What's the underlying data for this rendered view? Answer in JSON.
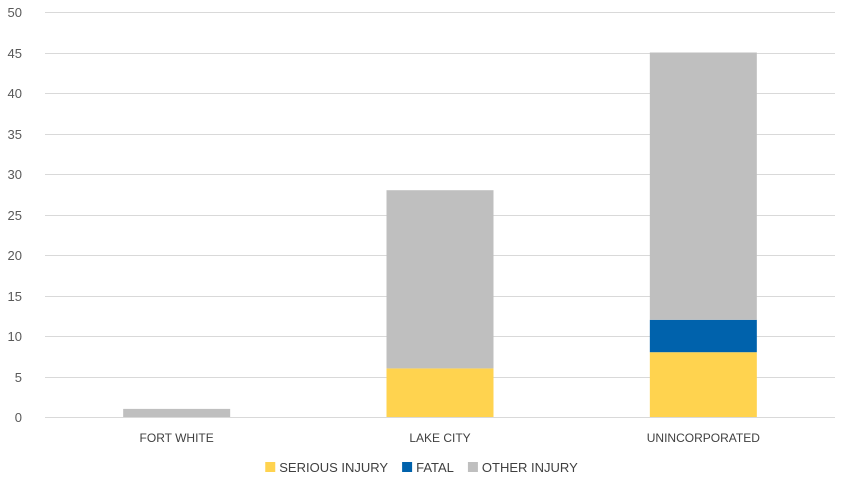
{
  "chart_data": {
    "type": "bar",
    "stacked": true,
    "title": "",
    "xlabel": "",
    "ylabel": "",
    "ylim": [
      0,
      50
    ],
    "yticks": [
      0,
      5,
      10,
      15,
      20,
      25,
      30,
      35,
      40,
      45,
      50
    ],
    "grid": true,
    "legend_position": "bottom",
    "categories": [
      "FORT WHITE",
      "LAKE CITY",
      "UNINCORPORATED"
    ],
    "series": [
      {
        "name": "SERIOUS INJURY",
        "color": "#FFD34F",
        "values": [
          0,
          6,
          8
        ]
      },
      {
        "name": "FATAL",
        "color": "#0062AC",
        "values": [
          0,
          0,
          4
        ]
      },
      {
        "name": "OTHER INJURY",
        "color": "#BFBFBF",
        "values": [
          1,
          22,
          33
        ]
      }
    ]
  }
}
